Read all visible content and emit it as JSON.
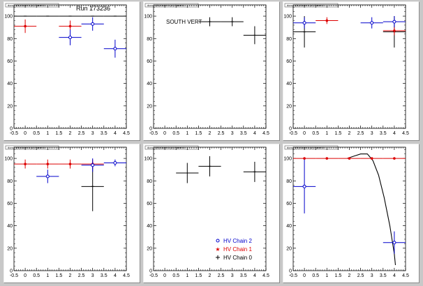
{
  "colors": {
    "chain2": "#0000cc",
    "chain1": "#dd0000",
    "chain0": "#000000",
    "fit": "#000000"
  },
  "run_label": "Run 173236",
  "south_vert_label": "SOUTH VERT",
  "legend": [
    {
      "label": "HV Chain 2",
      "color": "#0000cc",
      "marker": "circle"
    },
    {
      "label": "HV Chain 1",
      "color": "#dd0000",
      "marker": "star"
    },
    {
      "label": "HV Chain 0",
      "color": "#000000",
      "marker": "plus"
    }
  ],
  "chart_data": [
    {
      "type": "scatter",
      "pad_title": "dom 0 (N) Octnt 1 (V) Panel 0",
      "xlim": [
        -0.5,
        4.5
      ],
      "ylim": [
        0,
        110
      ],
      "x_ticks": [
        "-0.5",
        "0",
        "0.5",
        "1",
        "1.5",
        "2",
        "2.5",
        "3",
        "3.5",
        "4",
        "4.5"
      ],
      "y_ticks": [
        "0",
        "20",
        "40",
        "60",
        "80",
        "100"
      ],
      "series": [
        {
          "chain": 0,
          "points": [
            [
              0,
              100,
              0.5,
              0
            ],
            [
              1,
              100,
              0.5,
              0
            ],
            [
              2,
              100,
              0.5,
              0
            ],
            [
              3,
              100,
              0.5,
              0
            ],
            [
              4,
              100,
              0.5,
              0
            ]
          ]
        },
        {
          "chain": 1,
          "points": [
            [
              0,
              91,
              0.5,
              6
            ],
            [
              2,
              91,
              0.5,
              5
            ]
          ]
        },
        {
          "chain": 2,
          "points": [
            [
              2,
              81,
              0.5,
              7
            ],
            [
              3,
              93,
              0.5,
              6
            ],
            [
              4,
              71,
              0.5,
              8
            ]
          ]
        }
      ]
    },
    {
      "type": "scatter",
      "pad_title": "dom 0 (N) Octnt 1 (V) Panel 1",
      "xlim": [
        -0.5,
        4.5
      ],
      "ylim": [
        0,
        110
      ],
      "x_ticks": [
        "-0.5",
        "0",
        "0.5",
        "1",
        "1.5",
        "2",
        "2.5",
        "3",
        "3.5",
        "4",
        "4.5"
      ],
      "y_ticks": [
        "0",
        "20",
        "40",
        "60",
        "80",
        "100"
      ],
      "series": [
        {
          "chain": 0,
          "points": [
            [
              2,
              95,
              0.5,
              4
            ],
            [
              3,
              95,
              0.5,
              4
            ],
            [
              4,
              83,
              0.5,
              8
            ]
          ]
        }
      ]
    },
    {
      "type": "scatter",
      "pad_title": "dom 0 (N) Octnt 1 (V) Panel 2",
      "xlim": [
        -0.5,
        4.5
      ],
      "ylim": [
        0,
        110
      ],
      "x_ticks": [
        "-0.5",
        "0",
        "0.5",
        "1",
        "1.5",
        "2",
        "2.5",
        "3",
        "3.5",
        "4",
        "4.5"
      ],
      "y_ticks": [
        "0",
        "20",
        "40",
        "60",
        "80",
        "100"
      ],
      "series": [
        {
          "chain": 0,
          "points": [
            [
              0,
              86,
              0.5,
              14
            ],
            [
              4,
              86,
              0.5,
              14
            ]
          ]
        },
        {
          "chain": 1,
          "points": [
            [
              1,
              96,
              0.5,
              3
            ],
            [
              4,
              87,
              0.5,
              4
            ]
          ]
        },
        {
          "chain": 2,
          "points": [
            [
              0,
              94,
              0.5,
              5
            ],
            [
              3,
              94,
              0.5,
              5
            ],
            [
              4,
              95,
              0.5,
              5
            ]
          ]
        }
      ]
    },
    {
      "type": "scatter",
      "pad_title": "dom 0 (N) Octnt 1 (V) Panel 3",
      "xlim": [
        -0.5,
        4.5
      ],
      "ylim": [
        0,
        110
      ],
      "x_ticks": [
        "-0.5",
        "0",
        "0.5",
        "1",
        "1.5",
        "2",
        "2.5",
        "3",
        "3.5",
        "4",
        "4.5"
      ],
      "y_ticks": [
        "0",
        "20",
        "40",
        "60",
        "80",
        "100"
      ],
      "series": [
        {
          "chain": 0,
          "points": [
            [
              3,
              75,
              0.5,
              22
            ]
          ]
        },
        {
          "chain": 1,
          "points": [
            [
              0,
              95,
              0.5,
              4
            ],
            [
              1,
              95,
              0.5,
              4
            ],
            [
              2,
              95,
              0.5,
              4
            ],
            [
              3,
              95,
              0.5,
              4
            ]
          ]
        },
        {
          "chain": 2,
          "points": [
            [
              1,
              84,
              0.5,
              6
            ],
            [
              3,
              94,
              0.5,
              6
            ],
            [
              4,
              96,
              0.5,
              3
            ]
          ]
        }
      ]
    },
    {
      "type": "scatter",
      "pad_title": "dom 0 (N) Octnt 1 (V) Panel 4",
      "xlim": [
        -0.5,
        4.5
      ],
      "ylim": [
        0,
        110
      ],
      "x_ticks": [
        "-0.5",
        "0",
        "0.5",
        "1",
        "1.5",
        "2",
        "2.5",
        "3",
        "3.5",
        "4",
        "4.5"
      ],
      "y_ticks": [
        "0",
        "20",
        "40",
        "60",
        "80",
        "100"
      ],
      "series": [
        {
          "chain": 0,
          "points": [
            [
              1,
              87,
              0.5,
              9
            ],
            [
              2,
              93,
              0.5,
              9
            ],
            [
              4,
              88,
              0.5,
              9
            ]
          ]
        }
      ]
    },
    {
      "type": "scatter",
      "pad_title": "dom 0 (N) Octnt 1 (V) Panel 5",
      "xlim": [
        -0.5,
        4.5
      ],
      "ylim": [
        0,
        110
      ],
      "x_ticks": [
        "-0.5",
        "0",
        "0.5",
        "1",
        "1.5",
        "2",
        "2.5",
        "3",
        "3.5",
        "4",
        "4.5"
      ],
      "y_ticks": [
        "0",
        "20",
        "40",
        "60",
        "80",
        "100"
      ],
      "series": [
        {
          "chain": 1,
          "points": [
            [
              0,
              100,
              0.5,
              0
            ],
            [
              1,
              100,
              0.5,
              0
            ],
            [
              2,
              100,
              0.5,
              0
            ],
            [
              3,
              100,
              0.5,
              0
            ],
            [
              4,
              100,
              0.5,
              0
            ]
          ]
        },
        {
          "chain": 2,
          "points": [
            [
              0,
              75,
              0.5,
              24
            ],
            [
              4,
              25,
              0.5,
              10
            ]
          ]
        }
      ],
      "fit_curve": [
        [
          1.9,
          100
        ],
        [
          2.2,
          102
        ],
        [
          2.5,
          104
        ],
        [
          2.8,
          104
        ],
        [
          3.05,
          98
        ],
        [
          3.3,
          85
        ],
        [
          3.55,
          65
        ],
        [
          3.8,
          40
        ],
        [
          4.0,
          15
        ],
        [
          4.05,
          5
        ]
      ]
    }
  ]
}
